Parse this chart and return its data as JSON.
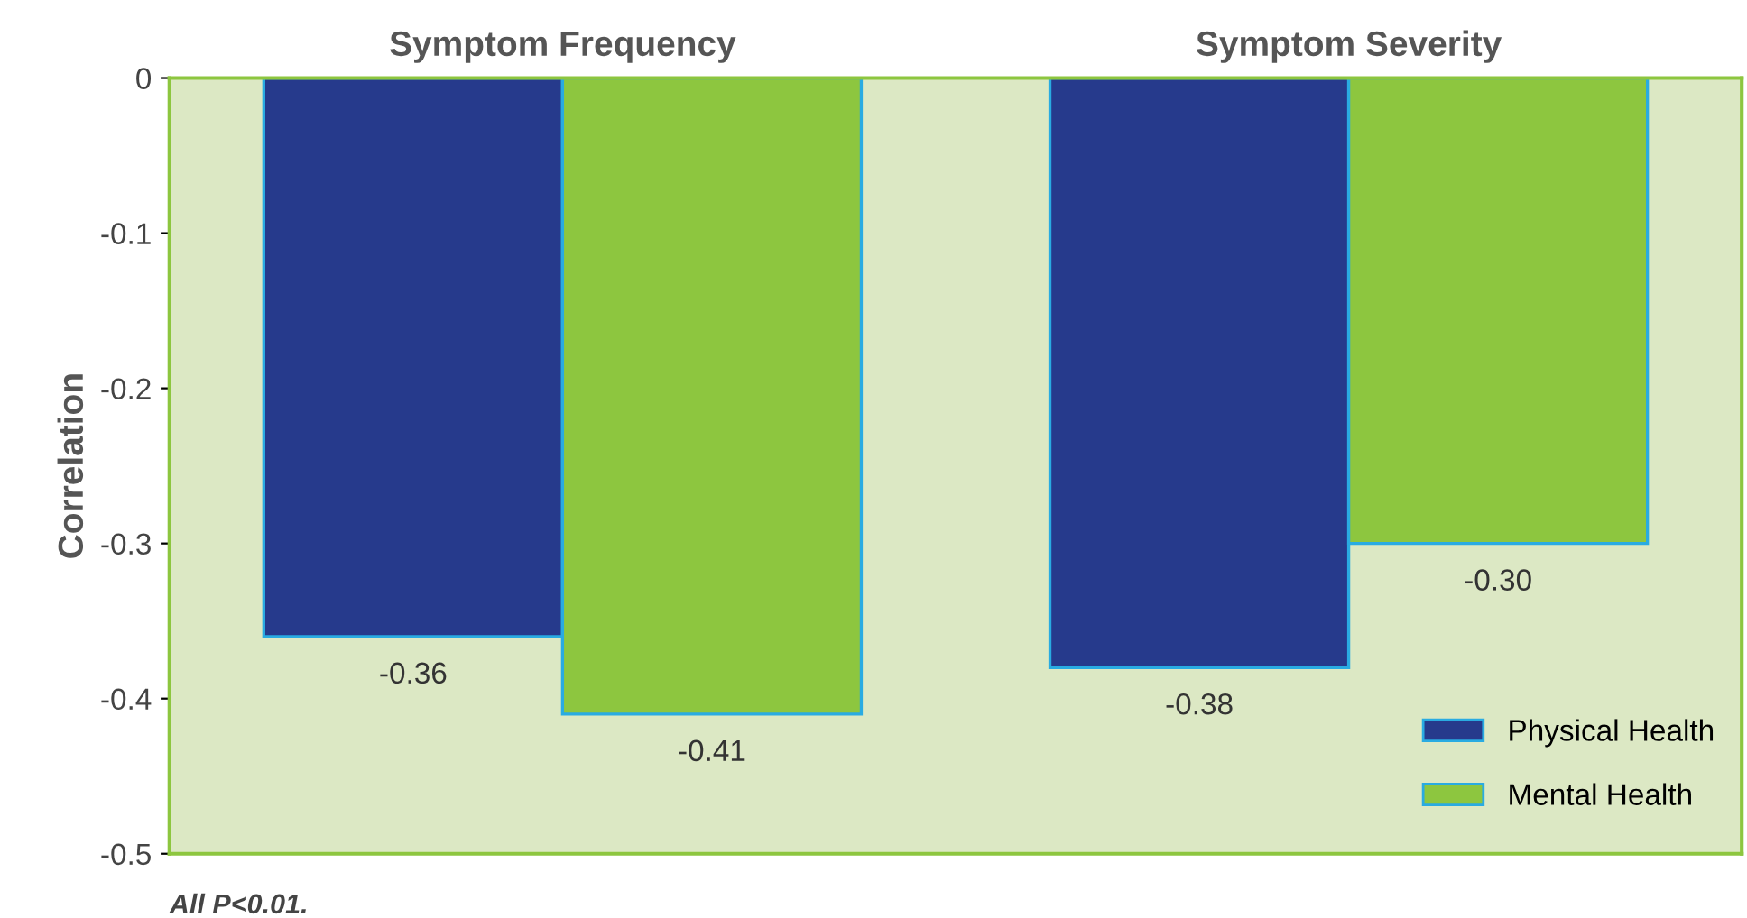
{
  "chart_data": {
    "type": "bar",
    "ylabel": "Correlation",
    "categories": [
      "Symptom Frequency",
      "Symptom Severity"
    ],
    "series": [
      {
        "name": "Physical Health",
        "color": "#263a8c",
        "values": [
          -0.36,
          -0.38
        ],
        "value_labels": [
          "-0.36",
          "-0.38"
        ]
      },
      {
        "name": "Mental Health",
        "color": "#8dc63f",
        "values": [
          -0.41,
          -0.3
        ],
        "value_labels": [
          "-0.41",
          "-0.30"
        ]
      }
    ],
    "ylim": [
      -0.5,
      0
    ],
    "yticks": [
      0,
      -0.1,
      -0.2,
      -0.3,
      -0.4,
      -0.5
    ],
    "grid": false,
    "legend": "bottom right",
    "annotations": [
      "All P<0.01."
    ]
  }
}
